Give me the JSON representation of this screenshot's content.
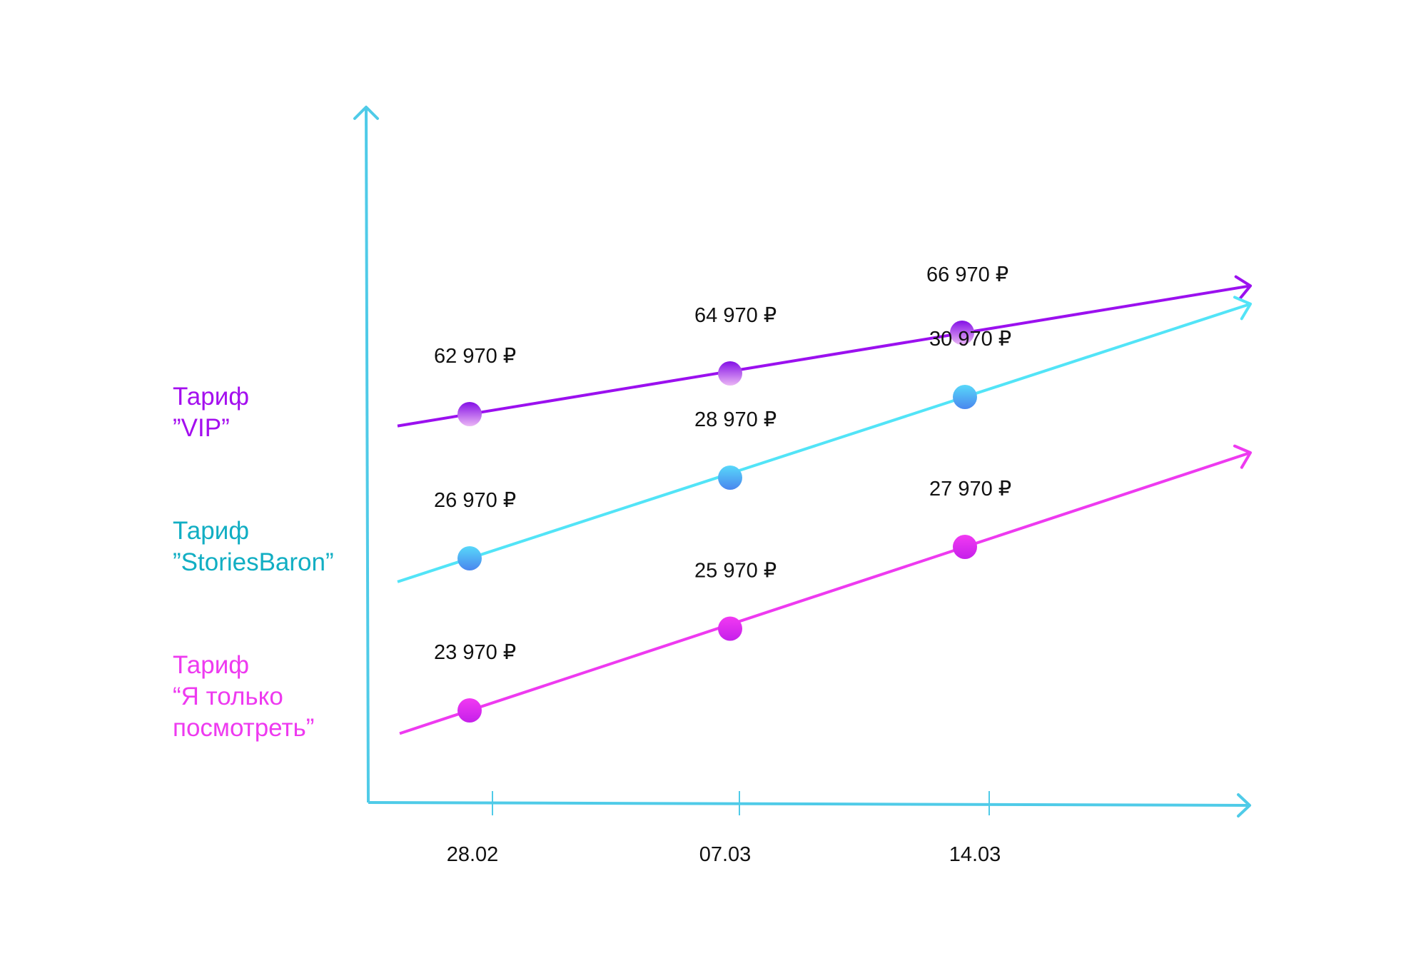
{
  "chart_data": {
    "type": "line",
    "categories": [
      "28.02",
      "07.03",
      "14.03"
    ],
    "series": [
      {
        "name": "Тариф\n”VIP”",
        "values": [
          62970,
          64970,
          66970
        ],
        "value_labels": [
          "62 970 ₽",
          "64 970 ₽",
          "66 970 ₽"
        ],
        "color": "#9b10ef"
      },
      {
        "name": "Тариф\n”StoriesBaron”",
        "values": [
          26970,
          28970,
          30970
        ],
        "value_labels": [
          "26 970 ₽",
          "28 970 ₽",
          "30 970 ₽"
        ],
        "color": "#52e4f7"
      },
      {
        "name": "Тариф\n “Я только\nпосмотреть”",
        "values": [
          23970,
          25970,
          27970
        ],
        "value_labels": [
          "23 970  ₽",
          "25 970 ₽",
          "27 970 ₽"
        ],
        "color": "#ee3af0"
      }
    ],
    "series_label_colors": [
      "#a40fef",
      "#11aec3",
      "#ee3af0"
    ],
    "axis_color": "#4fcbe8",
    "title": "",
    "xlabel": "",
    "ylabel": "",
    "grid": false,
    "legend": "left"
  }
}
